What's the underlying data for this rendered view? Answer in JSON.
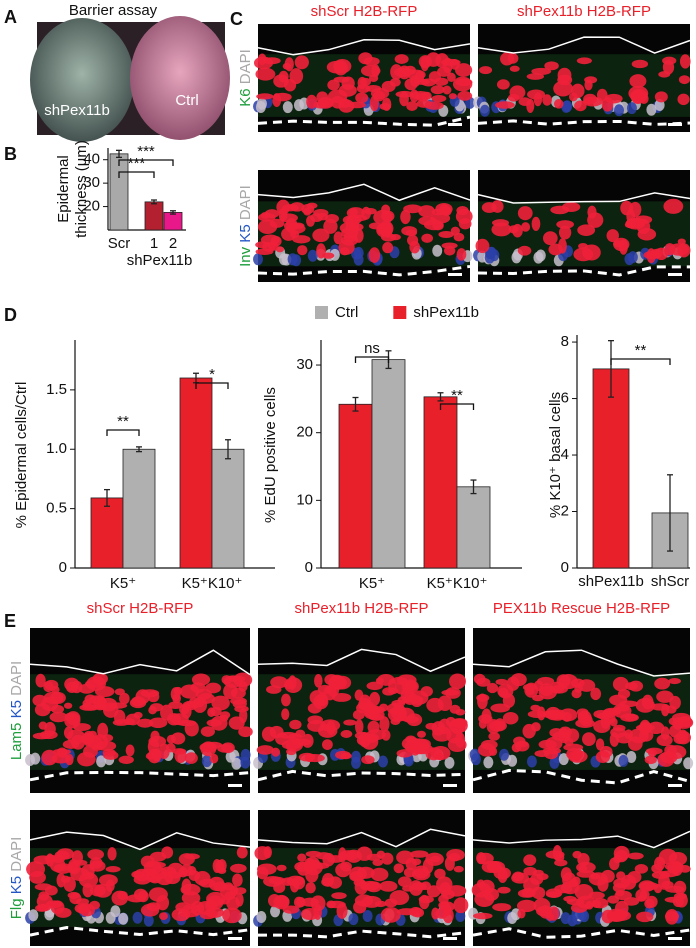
{
  "panels": {
    "A": {
      "label": "A",
      "title": "Barrier assay",
      "image_labels": [
        "shPex11b",
        "Ctrl"
      ]
    },
    "B": {
      "label": "B"
    },
    "C": {
      "label": "C",
      "column_color": "#e8202a",
      "columns": [
        "shScr H2B-RFP",
        "shPex11b H2B-RFP"
      ],
      "rows": [
        {
          "stains": [
            {
              "text": "K6",
              "color": "#1f9e3c"
            },
            {
              "text": "DAPI",
              "color": "#a8a8a8"
            }
          ]
        },
        {
          "stains": [
            {
              "text": "Inv",
              "color": "#1f9e3c"
            },
            {
              "text": "K5",
              "color": "#2457c5"
            },
            {
              "text": "DAPI",
              "color": "#a8a8a8"
            }
          ]
        }
      ]
    },
    "D": {
      "label": "D"
    },
    "E": {
      "label": "E",
      "column_color": "#e8202a",
      "columns": [
        "shScr H2B-RFP",
        "shPex11b H2B-RFP",
        "PEX11b Rescue H2B-RFP"
      ],
      "rows": [
        {
          "stains": [
            {
              "text": "Lam5",
              "color": "#1f9e3c"
            },
            {
              "text": "K5",
              "color": "#2457c5"
            },
            {
              "text": "DAPI",
              "color": "#a8a8a8"
            }
          ]
        },
        {
          "stains": [
            {
              "text": "Flg",
              "color": "#1f9e3c"
            },
            {
              "text": "K5",
              "color": "#2457c5"
            },
            {
              "text": "DAPI",
              "color": "#a8a8a8"
            }
          ]
        }
      ]
    }
  },
  "chart_data": [
    {
      "type": "bar",
      "ylabel": [
        "Epidermal",
        "thickness (µm)"
      ],
      "categories": [
        "Scr",
        "1",
        "2"
      ],
      "xlabel": "shPex11b",
      "values": [
        42.5,
        22,
        17.5
      ],
      "errors": [
        1.5,
        0.8,
        0.7
      ],
      "colors": [
        "#a9a9a9",
        "#b3202f",
        "#e8178a"
      ],
      "ylim": [
        10,
        45
      ],
      "yticks": [
        20,
        30,
        40
      ],
      "annotations": [
        {
          "text": "***",
          "between": [
            0,
            2
          ]
        },
        {
          "text": "***",
          "between": [
            0,
            1
          ]
        }
      ]
    },
    {
      "type": "grouped-bar",
      "ylabel": "% Epidermal cells/Ctrl",
      "categories": [
        "K5⁺",
        "K5⁺K10⁺"
      ],
      "series": [
        {
          "name": "shPex11b",
          "color": "#e8202a",
          "values": [
            0.59,
            1.6
          ],
          "errors": [
            0.07,
            0.04
          ]
        },
        {
          "name": "Ctrl",
          "color": "#b0b0b0",
          "values": [
            1,
            1
          ],
          "errors": [
            0.02,
            0.08
          ]
        }
      ],
      "ylim": [
        0,
        1.92
      ],
      "yticks": [
        0,
        0.5,
        {
          "value": 1,
          "label": "1.0"
        },
        1.5
      ],
      "annotations": [
        {
          "text": "**",
          "group": 0
        },
        {
          "text": "*",
          "group": 1
        }
      ]
    },
    {
      "type": "grouped-bar",
      "ylabel": "% EdU positive cells",
      "categories": [
        "K5⁺",
        "K5⁺K10⁺"
      ],
      "series": [
        {
          "color": "#e8202a",
          "values": [
            24.2,
            25.3
          ],
          "errors": [
            1,
            0.6
          ]
        },
        {
          "color": "#b0b0b0",
          "values": [
            30.8,
            12
          ],
          "errors": [
            1.3,
            1
          ]
        }
      ],
      "ylim": [
        0,
        33.7
      ],
      "yticks": [
        0,
        10,
        20,
        30
      ],
      "annotations": [
        {
          "text": "ns",
          "group": 0
        },
        {
          "text": "**",
          "group": 1
        }
      ]
    },
    {
      "type": "bar",
      "ylabel": "% K10⁺ basal cells",
      "categories": [
        "shPex11b",
        "shScr"
      ],
      "values": [
        7.05,
        1.95
      ],
      "errors": [
        1,
        1.35
      ],
      "colors": [
        "#e8202a",
        "#b0b0b0"
      ],
      "ylim": [
        0,
        8.25
      ],
      "yticks": [
        0,
        2,
        4,
        6,
        8
      ],
      "annotations": [
        {
          "text": "**",
          "between": [
            0,
            1
          ]
        }
      ]
    }
  ]
}
